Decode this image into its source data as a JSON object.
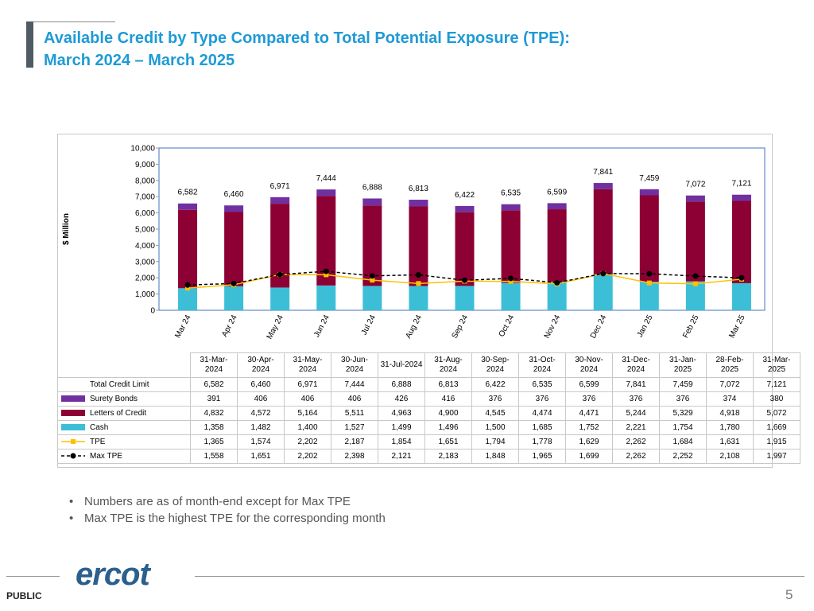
{
  "title": [
    "Available Credit by Type Compared to Total Potential Exposure (TPE):",
    "March 2024 – March 2025"
  ],
  "chart_data": {
    "type": "bar",
    "ylabel": "$ Million",
    "ylim": [
      0,
      10000
    ],
    "yticks": [
      0,
      {
        "value": 1000,
        "label": "1,000"
      },
      {
        "value": 2000,
        "label": "2,000"
      },
      {
        "value": 3000,
        "label": "3,000"
      },
      {
        "value": 4000,
        "label": "4,000"
      },
      {
        "value": 5000,
        "label": "5,000"
      },
      {
        "value": 6000,
        "label": "6,000"
      },
      {
        "value": 7000,
        "label": "7,000"
      },
      {
        "value": 8000,
        "label": "8,000"
      },
      {
        "value": 9000,
        "label": "9,000"
      },
      {
        "value": 10000,
        "label": "10,000"
      }
    ],
    "grid": false,
    "categories": [
      "Mar 24",
      "Apr 24",
      "May 24",
      "Jun 24",
      "Jul 24",
      "Aug 24",
      "Sep 24",
      "Oct 24",
      "Nov 24",
      "Dec 24",
      "Jan 25",
      "Feb 25",
      "Mar 25"
    ],
    "table_columns": [
      "31-Mar-2024",
      "30-Apr-2024",
      "31-May-2024",
      "30-Jun-2024",
      "31-Jul-2024",
      "31-Aug-2024",
      "30-Sep-2024",
      "31-Oct-2024",
      "30-Nov-2024",
      "31-Dec-2024",
      "31-Jan-2025",
      "28-Feb-2025",
      "31-Mar-2025"
    ],
    "series": [
      {
        "name": "Total Credit Limit",
        "type": "total",
        "values": [
          6582,
          6460,
          6971,
          7444,
          6888,
          6813,
          6422,
          6535,
          6599,
          7841,
          7459,
          7072,
          7121
        ],
        "value_labels": [
          "6,582",
          "6,460",
          "6,971",
          "7,444",
          "6,888",
          "6,813",
          "6,422",
          "6,535",
          "6,599",
          "7,841",
          "7,459",
          "7,072",
          "7,121"
        ]
      },
      {
        "name": "Surety Bonds",
        "type": "bar",
        "color": "#7030a0",
        "values": [
          391,
          406,
          406,
          406,
          426,
          416,
          376,
          376,
          376,
          376,
          376,
          374,
          380
        ]
      },
      {
        "name": "Letters of Credit",
        "type": "bar",
        "color": "#8c0033",
        "values": [
          4832,
          4572,
          5164,
          5511,
          4963,
          4900,
          4545,
          4474,
          4471,
          5244,
          5329,
          4918,
          5072
        ],
        "value_labels": [
          "4,832",
          "4,572",
          "5,164",
          "5,511",
          "4,963",
          "4,900",
          "4,545",
          "4,474",
          "4,471",
          "5,244",
          "5,329",
          "4,918",
          "5,072"
        ]
      },
      {
        "name": "Cash",
        "type": "bar",
        "color": "#3cbfd6",
        "values": [
          1358,
          1482,
          1400,
          1527,
          1499,
          1496,
          1500,
          1685,
          1752,
          2221,
          1754,
          1780,
          1669
        ],
        "value_labels": [
          "1,358",
          "1,482",
          "1,400",
          "1,527",
          "1,499",
          "1,496",
          "1,500",
          "1,685",
          "1,752",
          "2,221",
          "1,754",
          "1,780",
          "1,669"
        ]
      },
      {
        "name": "TPE",
        "type": "line",
        "color": "#ffc000",
        "marker": "square",
        "values": [
          1365,
          1574,
          2202,
          2187,
          1854,
          1651,
          1794,
          1778,
          1629,
          2262,
          1684,
          1631,
          1915
        ],
        "value_labels": [
          "1,365",
          "1,574",
          "2,202",
          "2,187",
          "1,854",
          "1,651",
          "1,794",
          "1,778",
          "1,629",
          "2,262",
          "1,684",
          "1,631",
          "1,915"
        ]
      },
      {
        "name": "Max TPE",
        "type": "line",
        "color": "#000000",
        "marker": "circle",
        "dashed": true,
        "values": [
          1558,
          1651,
          2202,
          2398,
          2121,
          2183,
          1848,
          1965,
          1699,
          2262,
          2252,
          2108,
          1997
        ],
        "value_labels": [
          "1,558",
          "1,651",
          "2,202",
          "2,398",
          "2,121",
          "2,183",
          "1,848",
          "1,965",
          "1,699",
          "2,262",
          "2,252",
          "2,108",
          "1,997"
        ]
      }
    ]
  },
  "notes": [
    "Numbers are as of month-end except for Max TPE",
    "Max TPE is the highest TPE for the corresponding month"
  ],
  "footer": {
    "logo": "ercot",
    "label": "PUBLIC",
    "page": "5"
  }
}
